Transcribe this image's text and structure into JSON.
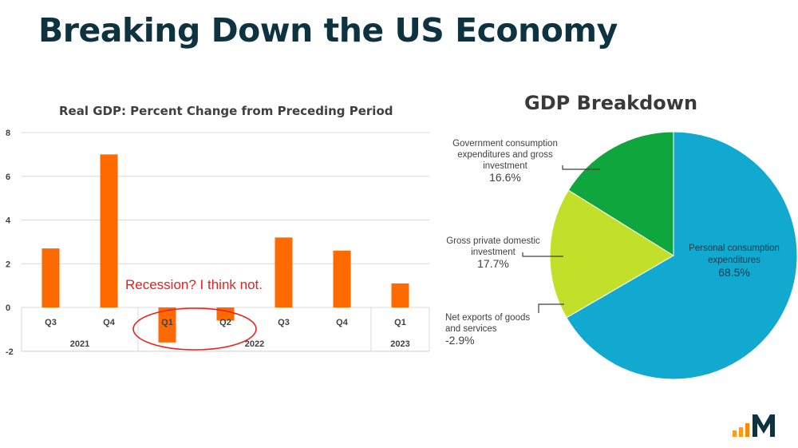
{
  "page": {
    "title": "Breaking Down the US Economy",
    "annotation": "Recession? I think not."
  },
  "colors": {
    "title": "#0e3340",
    "bar": "#ff6a00",
    "annotation": "#e8201e",
    "pie_personal": "#12a9d0",
    "pie_investment": "#c2e02a",
    "pie_government": "#10a63e"
  },
  "chart_data": [
    {
      "type": "bar",
      "title": "Real GDP: Percent Change from Preceding Period",
      "categories": [
        "Q3",
        "Q4",
        "Q1",
        "Q2",
        "Q3",
        "Q4",
        "Q1"
      ],
      "groups": [
        {
          "label": "2021",
          "span": 2
        },
        {
          "label": "2022",
          "span": 4
        },
        {
          "label": "2023",
          "span": 1
        }
      ],
      "values": [
        2.7,
        7.0,
        -1.6,
        -0.6,
        3.2,
        2.6,
        1.1
      ],
      "y_ticks": [
        "8",
        "6",
        "4",
        "2",
        "0",
        "-2"
      ],
      "ylim": [
        -2,
        8
      ],
      "grid": true,
      "xlabel": "",
      "ylabel": ""
    },
    {
      "type": "pie",
      "title": "GDP Breakdown",
      "slices": [
        {
          "label_lines": [
            "Personal consumption",
            "expenditures"
          ],
          "value_label": "68.5%",
          "value": 68.5
        },
        {
          "label_lines": [
            "Net exports of goods",
            "and services"
          ],
          "value_label": "-2.9%",
          "value": -2.9
        },
        {
          "label_lines": [
            "Gross private domestic",
            "investment"
          ],
          "value_label": "17.7%",
          "value": 17.7
        },
        {
          "label_lines": [
            "Government consumption",
            "expenditures and gross",
            "investment"
          ],
          "value_label": "16.6%",
          "value": 16.6
        }
      ]
    }
  ]
}
